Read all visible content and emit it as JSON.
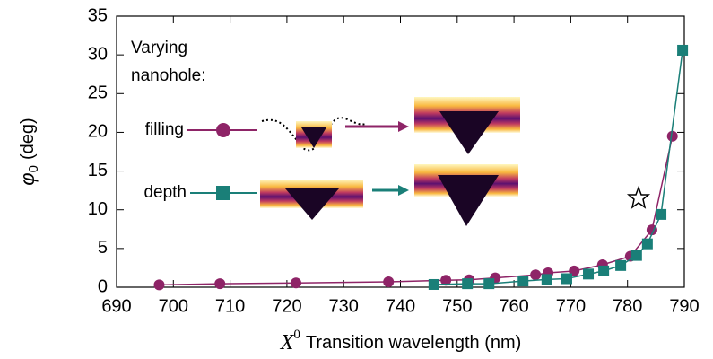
{
  "chart_data": {
    "type": "line",
    "xlabel": {
      "symbol": "X",
      "sup": "0",
      "text": "Transition wavelength (nm)"
    },
    "ylabel": {
      "symbol": "φ",
      "sub": "0",
      "text": "(deg)"
    },
    "legend_title": [
      "Varying",
      "nanohole:"
    ],
    "xlim": [
      690,
      790
    ],
    "xticks": [
      690,
      700,
      710,
      720,
      730,
      740,
      750,
      760,
      770,
      780,
      790
    ],
    "ylim": [
      0,
      35
    ],
    "yticks": [
      0,
      5,
      10,
      15,
      20,
      25,
      30,
      35
    ],
    "series": [
      {
        "name": "filling",
        "color": "#8e2467",
        "marker": "circle",
        "x": [
          697.5,
          708.2,
          721.6,
          737.9,
          748,
          752.1,
          756.7,
          763.8,
          766,
          770.6,
          775.6,
          780.5,
          784.3,
          787.9
        ],
        "values": [
          0.3,
          0.45,
          0.55,
          0.7,
          0.9,
          0.95,
          1.2,
          1.6,
          1.85,
          2.1,
          2.9,
          4.0,
          7.4,
          19.5
        ]
      },
      {
        "name": "depth",
        "color": "#1a7f78",
        "marker": "square",
        "x": [
          745.9,
          751.8,
          755.6,
          761.6,
          765.8,
          769.3,
          773.1,
          775.8,
          778.8,
          781.6,
          783.5,
          785.9,
          789.7
        ],
        "values": [
          0.35,
          0.45,
          0.45,
          0.8,
          1.0,
          1.1,
          1.7,
          2.1,
          2.8,
          4.1,
          5.6,
          9.4,
          30.6
        ]
      }
    ]
  }
}
